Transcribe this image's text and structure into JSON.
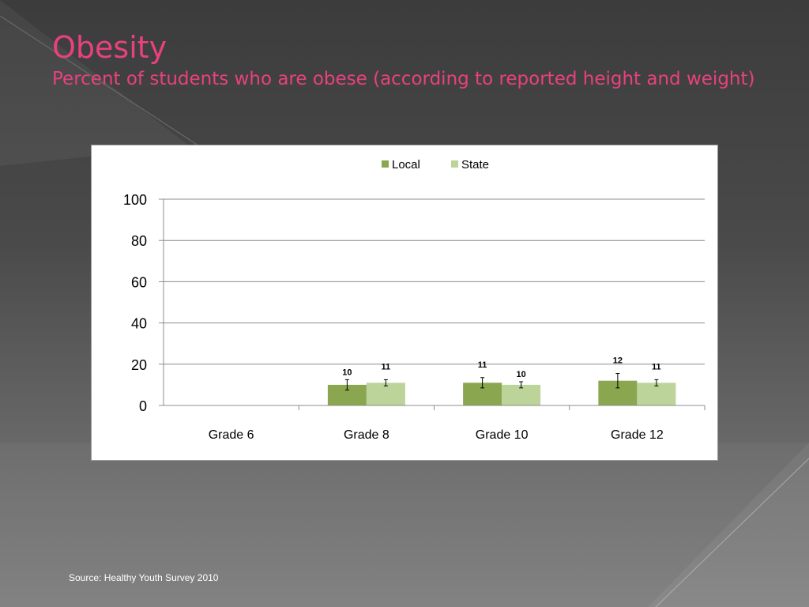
{
  "slide": {
    "title": "Obesity",
    "subtitle": "Percent of students who are obese (according to reported height and weight)",
    "source": "Source: Healthy Youth Survey 2010"
  },
  "colors": {
    "local": "#8aa64f",
    "state": "#bcd39a",
    "title": "#e8417e",
    "grid": "#8c8c8c"
  },
  "chart_data": {
    "type": "bar",
    "title": "",
    "xlabel": "",
    "ylabel": "",
    "ylim": [
      0,
      100
    ],
    "yticks": [
      0,
      20,
      40,
      60,
      80,
      100
    ],
    "legend_position": "top-center",
    "grid": true,
    "categories": [
      "Grade 6",
      "Grade 8",
      "Grade 10",
      "Grade 12"
    ],
    "series": [
      {
        "name": "Local",
        "values": [
          null,
          10,
          11,
          12
        ],
        "labels": [
          "",
          "10",
          "11",
          "12"
        ],
        "error": [
          null,
          2.5,
          2.5,
          3.5
        ]
      },
      {
        "name": "State",
        "values": [
          null,
          11,
          10,
          11
        ],
        "labels": [
          "",
          "11",
          "10",
          "11"
        ],
        "error": [
          null,
          1.5,
          1.5,
          1.5
        ]
      }
    ]
  }
}
